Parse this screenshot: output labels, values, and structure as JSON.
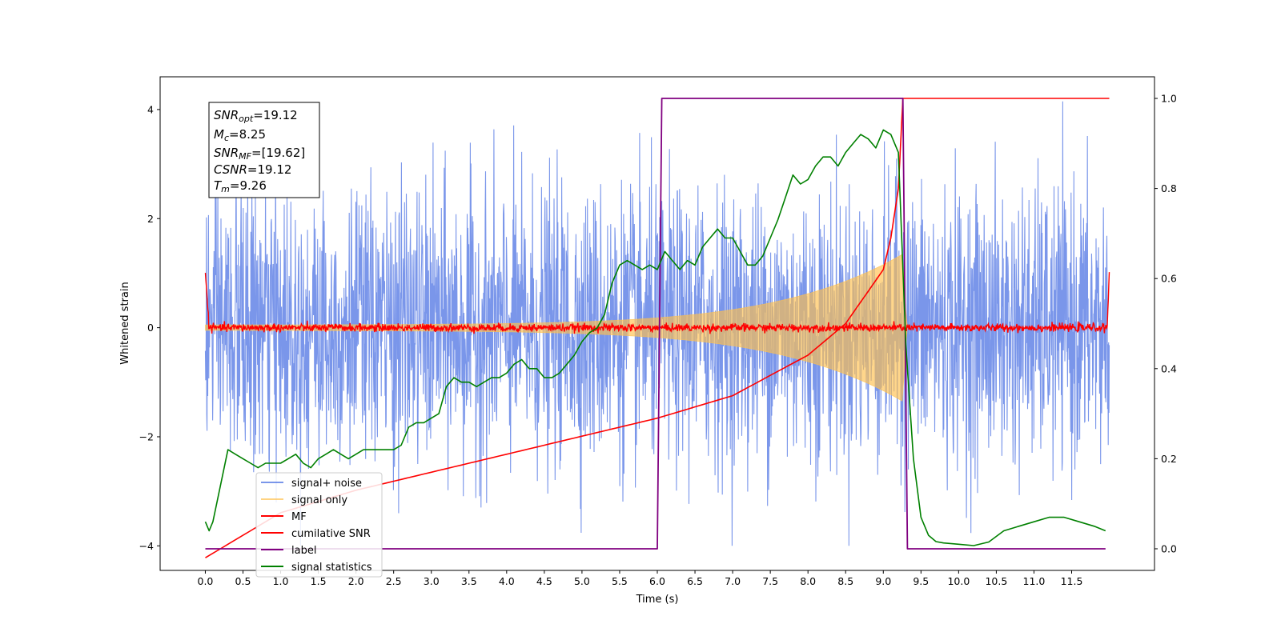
{
  "chart_data": {
    "type": "line",
    "xlabel": "Time (s)",
    "ylabel": "Whitened strain",
    "xlim": [
      -0.6,
      12.6
    ],
    "ylim": [
      -4.45,
      4.6
    ],
    "y2lim": [
      -0.048,
      1.048
    ],
    "xticks": [
      "0.0",
      "0.5",
      "1.0",
      "1.5",
      "2.0",
      "2.5",
      "3.0",
      "3.5",
      "4.0",
      "4.5",
      "5.0",
      "5.5",
      "6.0",
      "6.5",
      "7.0",
      "7.5",
      "8.0",
      "8.5",
      "9.0",
      "9.5",
      "10.0",
      "10.5",
      "11.0",
      "11.5"
    ],
    "xtick_values": [
      0,
      0.5,
      1,
      1.5,
      2,
      2.5,
      3,
      3.5,
      4,
      4.5,
      5,
      5.5,
      6,
      6.5,
      7,
      7.5,
      8,
      8.5,
      9,
      9.5,
      10,
      10.5,
      11,
      11.5
    ],
    "yticks": [
      "−4",
      "−2",
      "0",
      "2",
      "4"
    ],
    "ytick_values": [
      -4,
      -2,
      0,
      2,
      4
    ],
    "y2ticks": [
      "0.0",
      "0.2",
      "0.4",
      "0.6",
      "0.8",
      "1.0"
    ],
    "y2tick_values": [
      0,
      0.2,
      0.4,
      0.6,
      0.8,
      1.0
    ],
    "annotation": {
      "snr_opt": {
        "name": "SNR",
        "sub": "opt",
        "value": "=19.12"
      },
      "mc": {
        "name": "M",
        "sub": "c",
        "value": "=8.25"
      },
      "snr_mf": {
        "name": "SNR",
        "sub": "MF",
        "value": "=[19.62]"
      },
      "csnr": {
        "name": "CSNR",
        "sub": "",
        "value": "=19.12"
      },
      "tm": {
        "name": "T",
        "sub": "m",
        "value": "=9.26"
      }
    },
    "legend_position": "lower-left",
    "series": [
      {
        "name": "signal+ noise",
        "color": "#4169e1",
        "axis": "left",
        "description_range": [
          -3.9,
          4.2
        ],
        "t_end": 12.0
      },
      {
        "name": "signal only",
        "color": "#ffc04d",
        "axis": "left",
        "envelope_start": 0.05,
        "envelope_end": 1.25,
        "t_merger": 9.26
      },
      {
        "name": "MF",
        "color": "#ff0000",
        "axis": "left",
        "amplitude": 0.06
      },
      {
        "name": "cumilative SNR",
        "color": "#ff0000",
        "axis": "right",
        "x": [
          0,
          1,
          2,
          3,
          4,
          5,
          6,
          7,
          8,
          8.5,
          9,
          9.1,
          9.2,
          9.26,
          9.27,
          12.0
        ],
        "y": [
          -0.02,
          0.08,
          0.13,
          0.17,
          0.21,
          0.25,
          0.29,
          0.34,
          0.43,
          0.5,
          0.62,
          0.69,
          0.8,
          1.0,
          1.0,
          1.0
        ]
      },
      {
        "name": "label",
        "color": "#800080",
        "axis": "right",
        "x": [
          0,
          6.0,
          6.06,
          9.26,
          9.32,
          11.95
        ],
        "y": [
          0,
          0,
          1,
          1,
          0,
          0
        ]
      },
      {
        "name": "signal statistics",
        "color": "#008000",
        "axis": "right",
        "x": [
          0,
          0.05,
          0.1,
          0.2,
          0.3,
          0.4,
          0.5,
          0.6,
          0.7,
          0.8,
          0.9,
          1.0,
          1.1,
          1.2,
          1.3,
          1.4,
          1.5,
          1.6,
          1.7,
          1.8,
          1.9,
          2.0,
          2.1,
          2.2,
          2.3,
          2.4,
          2.5,
          2.6,
          2.7,
          2.8,
          2.9,
          3.0,
          3.1,
          3.2,
          3.3,
          3.4,
          3.5,
          3.6,
          3.7,
          3.8,
          3.9,
          4.0,
          4.1,
          4.2,
          4.3,
          4.4,
          4.5,
          4.6,
          4.7,
          4.8,
          4.9,
          5.0,
          5.1,
          5.2,
          5.3,
          5.4,
          5.5,
          5.6,
          5.7,
          5.8,
          5.9,
          6.0,
          6.1,
          6.2,
          6.3,
          6.4,
          6.5,
          6.6,
          6.7,
          6.8,
          6.9,
          7.0,
          7.1,
          7.2,
          7.3,
          7.4,
          7.5,
          7.6,
          7.7,
          7.8,
          7.9,
          8.0,
          8.1,
          8.2,
          8.3,
          8.4,
          8.5,
          8.6,
          8.7,
          8.8,
          8.9,
          9.0,
          9.1,
          9.2,
          9.3,
          9.4,
          9.5,
          9.6,
          9.7,
          9.8,
          10.0,
          10.2,
          10.4,
          10.6,
          10.8,
          11.0,
          11.2,
          11.4,
          11.6,
          11.8,
          11.95
        ],
        "y": [
          0.06,
          0.04,
          0.06,
          0.14,
          0.22,
          0.21,
          0.2,
          0.19,
          0.18,
          0.19,
          0.19,
          0.19,
          0.2,
          0.21,
          0.19,
          0.18,
          0.2,
          0.21,
          0.22,
          0.21,
          0.2,
          0.21,
          0.22,
          0.22,
          0.22,
          0.22,
          0.22,
          0.23,
          0.27,
          0.28,
          0.28,
          0.29,
          0.3,
          0.36,
          0.38,
          0.37,
          0.37,
          0.36,
          0.37,
          0.38,
          0.38,
          0.39,
          0.41,
          0.42,
          0.4,
          0.4,
          0.38,
          0.38,
          0.39,
          0.41,
          0.43,
          0.46,
          0.48,
          0.49,
          0.52,
          0.59,
          0.63,
          0.64,
          0.63,
          0.62,
          0.63,
          0.62,
          0.66,
          0.64,
          0.62,
          0.64,
          0.63,
          0.67,
          0.69,
          0.71,
          0.69,
          0.69,
          0.66,
          0.63,
          0.63,
          0.65,
          0.69,
          0.73,
          0.78,
          0.83,
          0.81,
          0.82,
          0.85,
          0.87,
          0.87,
          0.85,
          0.88,
          0.9,
          0.92,
          0.91,
          0.89,
          0.93,
          0.92,
          0.88,
          0.45,
          0.2,
          0.07,
          0.03,
          0.016,
          0.013,
          0.01,
          0.007,
          0.015,
          0.04,
          0.05,
          0.06,
          0.07,
          0.07,
          0.06,
          0.05,
          0.04
        ]
      }
    ]
  }
}
